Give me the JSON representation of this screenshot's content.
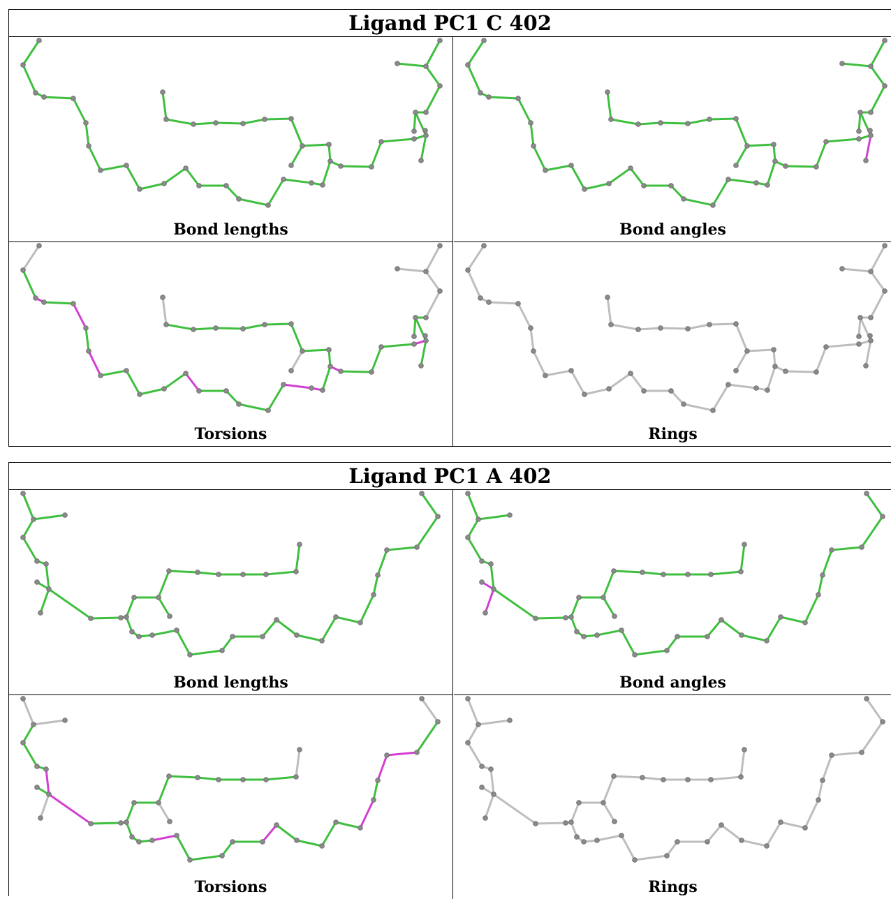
{
  "colors": {
    "green": "#3fbf3f",
    "dark": "#2e8b2e",
    "magenta": "#d23fd2",
    "grey": "#bdbdbd",
    "atom": "#8a8a8a"
  },
  "blocks": [
    {
      "title": "Ligand PC1 C 402",
      "panels": [
        {
          "caption": "Bond lengths",
          "mode": "green"
        },
        {
          "caption": "Bond angles",
          "mode": "angles"
        },
        {
          "caption": "Torsions",
          "mode": "torsions"
        },
        {
          "caption": "Rings",
          "mode": "grey"
        }
      ]
    },
    {
      "title": "Ligand PC1 A 402",
      "panels": [
        {
          "caption": "Bond lengths",
          "mode": "green"
        },
        {
          "caption": "Bond angles",
          "mode": "angles"
        },
        {
          "caption": "Torsions",
          "mode": "torsions"
        },
        {
          "caption": "Rings",
          "mode": "grey"
        }
      ]
    }
  ]
}
